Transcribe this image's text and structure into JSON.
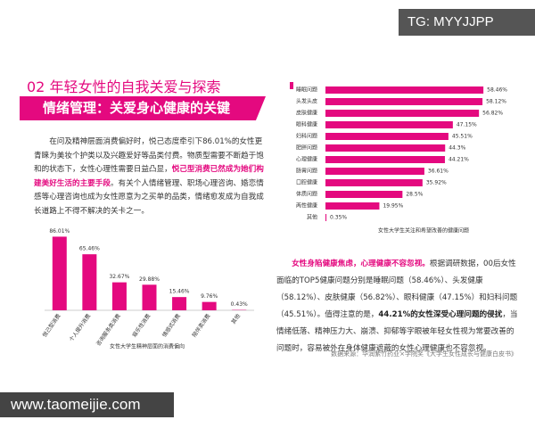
{
  "watermark_top": "TG: MYYJJPP",
  "heading": "02 年轻女性的自我关爱与探索",
  "banner": "情绪管理：关爱身心健康的关键",
  "intro": [
    "在问及精神层面消费偏好时，悦己态度牵引下86.01%的女性更青睐为美妆个护类以及兴趣爱好等品类付费。物质型需要不断趋于饱和的状态下，女性心理性需要日益凸显，",
    "悦己型消费已然成为她们构建美好生活的主要手段",
    "。有关个人情绪管理、职场心理咨询、婚恋情感等心理咨询也成为女性愿意为之买单的品类，情绪愈发成为自我成长道路上不得不解决的关卡之一。"
  ],
  "analysis": [
    "女性身陷健康焦虑，心理健康不容忽视。",
    "根据调研数据，00后女性面临的TOP5健康问题分别是睡眠问题（58.46%）、头发健康（58.12%）、皮肤健康（56.82%）、眼科健康（47.15%）和妇科问题（45.51%）。值得注意的是，",
    "44.21%的女性深受心理问题的侵扰",
    "，当情绪低落、精神压力大、崩溃、抑郁等字眼被年轻女性视为常要改善的问题时，容易被外在身体健康遮蔽的女性心理健康也不容忽视。"
  ],
  "source": "数据来源：华润紫竹药业×学院奖《大学生女性成长与健康白皮书》",
  "watermark_bottom": "www.taomeijie.com",
  "chart_data": [
    {
      "type": "bar",
      "orientation": "vertical",
      "title": "女性大学生精神层面的消费偏向",
      "color": "#e4097f",
      "categories": [
        "悦己型消费",
        "个人提升消费",
        "咨询服务类消费",
        "娱乐性消费",
        "情感式消费",
        "陪伴类消费",
        "其他"
      ],
      "values": [
        86.01,
        65.46,
        32.67,
        29.88,
        15.46,
        9.76,
        0.43
      ],
      "value_labels": [
        "86.01%",
        "65.46%",
        "32.67%",
        "29.88%",
        "15.46%",
        "9.76%",
        "0.43%"
      ]
    },
    {
      "type": "bar",
      "orientation": "horizontal",
      "title": "女性大学生关注和希望改善的健康问题",
      "color": "#e4097f",
      "categories": [
        "睡眠问题",
        "头发头皮",
        "皮肤健康",
        "眼科健康",
        "妇科问题",
        "肥胖问题",
        "心理健康",
        "肠胃问题",
        "口腔健康",
        "体质问题",
        "两性健康",
        "其他"
      ],
      "values": [
        58.46,
        58.12,
        56.82,
        47.15,
        45.51,
        44.3,
        44.21,
        36.61,
        35.92,
        28.5,
        19.95,
        0.35
      ],
      "value_labels": [
        "58.46%",
        "58.12%",
        "56.82%",
        "47.15%",
        "45.51%",
        "44.3%",
        "44.21%",
        "36.61%",
        "35.92%",
        "28.5%",
        "19.95%",
        "0.35%"
      ]
    }
  ]
}
